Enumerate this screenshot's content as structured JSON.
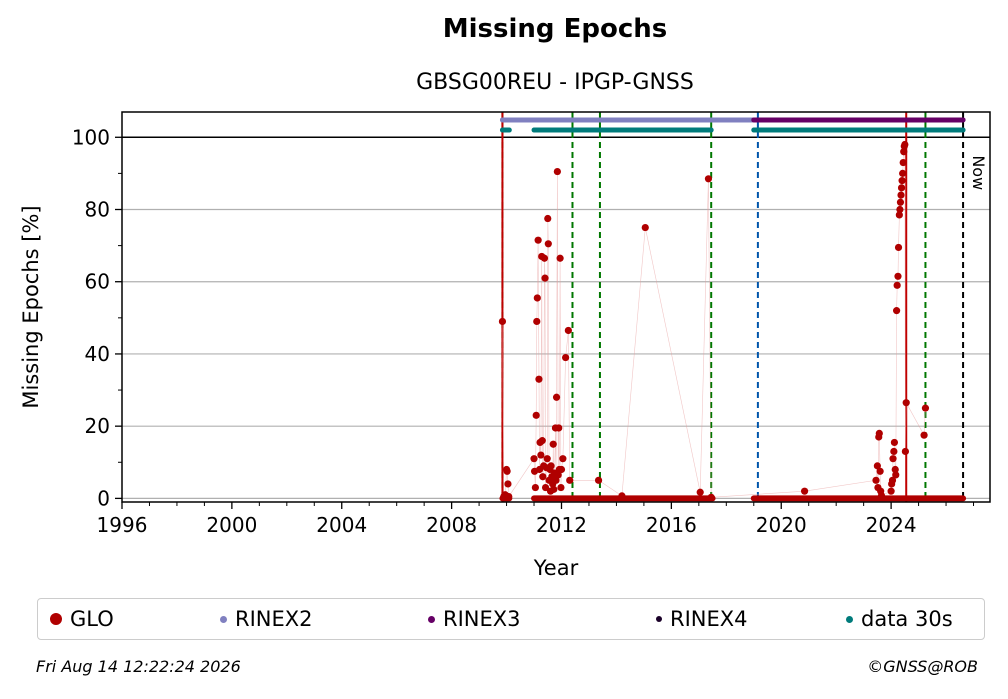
{
  "chart_data": {
    "type": "scatter",
    "title": "Missing Epochs",
    "subtitle": "GBSG00REU - IPGP-GNSS",
    "xlabel": "Year",
    "ylabel": "Missing Epochs [%]",
    "xlim": [
      1996,
      2027.6
    ],
    "ylim": [
      -1,
      107
    ],
    "x_ticks": [
      1996,
      2000,
      2004,
      2008,
      2012,
      2016,
      2020,
      2024
    ],
    "y_ticks": [
      0,
      20,
      40,
      60,
      80,
      100
    ],
    "grid": true,
    "now_label": "Now",
    "now_year": 2026.62,
    "legend": {
      "placement": "bottom",
      "entries": [
        {
          "label": "GLO",
          "color": "#b00000"
        },
        {
          "label": "RINEX2",
          "color": "#8080c0"
        },
        {
          "label": "RINEX3",
          "color": "#660066"
        },
        {
          "label": "RINEX4",
          "color": "#1a0028"
        },
        {
          "label": "data 30s",
          "color": "#007b7b"
        }
      ]
    },
    "event_lines": {
      "red": [
        2009.85,
        2024.55
      ],
      "green": [
        2009.85,
        2012.4,
        2013.4,
        2017.45,
        2025.25
      ],
      "blue": [
        2019.15
      ],
      "black": [
        2026.62
      ]
    },
    "availability_bars": [
      {
        "series": "RINEX2",
        "y": 104.8,
        "from": 2009.85,
        "to": 2019.0,
        "color": "#8080c0"
      },
      {
        "series": "RINEX3",
        "y": 104.8,
        "from": 2019.0,
        "to": 2026.62,
        "color": "#660066"
      },
      {
        "series": "data 30s",
        "y": 102.0,
        "from": 2009.85,
        "to": 2010.1,
        "color": "#007b7b"
      },
      {
        "series": "data 30s",
        "y": 102.0,
        "from": 2011.0,
        "to": 2017.45,
        "color": "#007b7b"
      },
      {
        "series": "data 30s",
        "y": 102.0,
        "from": 2019.0,
        "to": 2026.62,
        "color": "#007b7b"
      }
    ],
    "zero_segments": [
      {
        "from": 2009.85,
        "to": 2010.1
      },
      {
        "from": 2011.0,
        "to": 2017.5
      },
      {
        "from": 2019.0,
        "to": 2026.62
      }
    ],
    "series": [
      {
        "name": "GLO",
        "color": "#b00000",
        "points": [
          [
            2009.85,
            49
          ],
          [
            2009.9,
            0.5
          ],
          [
            2009.95,
            1
          ],
          [
            2010.0,
            8
          ],
          [
            2010.02,
            7.5
          ],
          [
            2010.05,
            4
          ],
          [
            2010.08,
            0.5
          ],
          [
            2011.0,
            11
          ],
          [
            2011.02,
            7.5
          ],
          [
            2011.05,
            3
          ],
          [
            2011.08,
            23
          ],
          [
            2011.1,
            49
          ],
          [
            2011.12,
            55.5
          ],
          [
            2011.15,
            71.5
          ],
          [
            2011.18,
            33
          ],
          [
            2011.2,
            8
          ],
          [
            2011.22,
            15.5
          ],
          [
            2011.25,
            12
          ],
          [
            2011.28,
            67
          ],
          [
            2011.3,
            16
          ],
          [
            2011.32,
            6
          ],
          [
            2011.35,
            9
          ],
          [
            2011.38,
            66.5
          ],
          [
            2011.4,
            61
          ],
          [
            2011.42,
            3
          ],
          [
            2011.45,
            8.5
          ],
          [
            2011.48,
            11
          ],
          [
            2011.5,
            77.5
          ],
          [
            2011.52,
            70.5
          ],
          [
            2011.55,
            5
          ],
          [
            2011.58,
            8
          ],
          [
            2011.6,
            2
          ],
          [
            2011.62,
            9
          ],
          [
            2011.65,
            6
          ],
          [
            2011.68,
            4
          ],
          [
            2011.7,
            15
          ],
          [
            2011.72,
            2.5
          ],
          [
            2011.75,
            7
          ],
          [
            2011.78,
            19.5
          ],
          [
            2011.8,
            5
          ],
          [
            2011.82,
            28
          ],
          [
            2011.85,
            90.5
          ],
          [
            2011.88,
            6.5
          ],
          [
            2011.9,
            19.5
          ],
          [
            2011.92,
            8
          ],
          [
            2011.95,
            66.5
          ],
          [
            2011.98,
            3
          ],
          [
            2012.0,
            8
          ],
          [
            2012.05,
            11
          ],
          [
            2012.15,
            39
          ],
          [
            2012.25,
            46.5
          ],
          [
            2012.3,
            5
          ],
          [
            2013.35,
            5
          ],
          [
            2014.2,
            0.7
          ],
          [
            2015.05,
            75
          ],
          [
            2017.05,
            1.7
          ],
          [
            2017.35,
            88.5
          ],
          [
            2017.45,
            0.3
          ],
          [
            2020.85,
            2
          ],
          [
            2023.45,
            5
          ],
          [
            2023.5,
            9
          ],
          [
            2023.52,
            3
          ],
          [
            2023.55,
            17
          ],
          [
            2023.57,
            18
          ],
          [
            2023.6,
            7.5
          ],
          [
            2023.62,
            2
          ],
          [
            2023.65,
            0.8
          ],
          [
            2024.0,
            2
          ],
          [
            2024.02,
            4
          ],
          [
            2024.05,
            5
          ],
          [
            2024.07,
            11
          ],
          [
            2024.1,
            13
          ],
          [
            2024.12,
            15.5
          ],
          [
            2024.15,
            8
          ],
          [
            2024.17,
            6.5
          ],
          [
            2024.2,
            52
          ],
          [
            2024.22,
            59
          ],
          [
            2024.25,
            61.5
          ],
          [
            2024.27,
            69.5
          ],
          [
            2024.3,
            78.5
          ],
          [
            2024.32,
            80
          ],
          [
            2024.34,
            82
          ],
          [
            2024.36,
            84
          ],
          [
            2024.38,
            86
          ],
          [
            2024.4,
            88
          ],
          [
            2024.42,
            90
          ],
          [
            2024.44,
            93
          ],
          [
            2024.46,
            96
          ],
          [
            2024.48,
            97.5
          ],
          [
            2024.5,
            98
          ],
          [
            2024.52,
            13
          ],
          [
            2024.55,
            26.5
          ],
          [
            2025.2,
            17.5
          ],
          [
            2025.25,
            25
          ]
        ]
      }
    ]
  },
  "footer": {
    "timestamp": "Fri Aug 14 12:22:24 2026",
    "credit": "©GNSS@ROB"
  }
}
